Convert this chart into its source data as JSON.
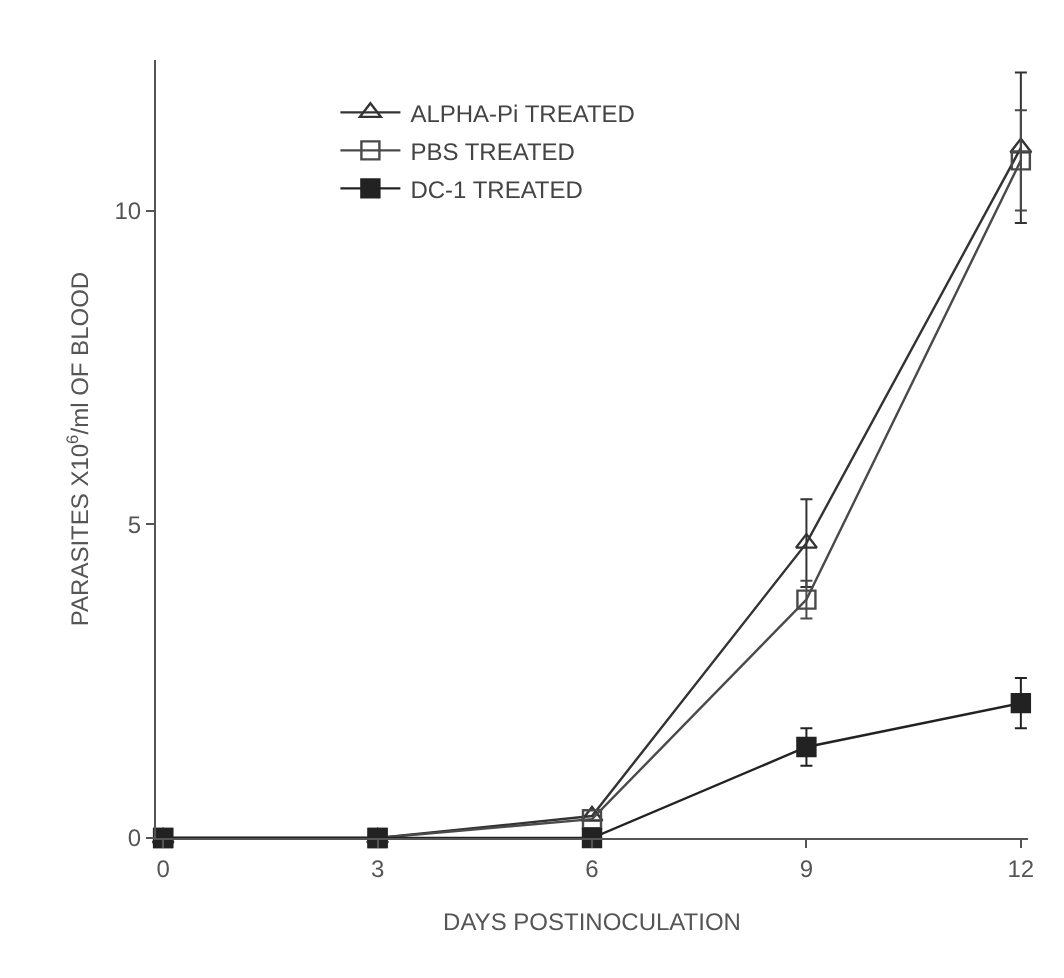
{
  "chart_data": {
    "type": "line",
    "xlabel": "DAYS POSTINOCULATION",
    "ylabel": "PARASITES X10$^{6}$/ml OF BLOOD",
    "x": [
      0,
      3,
      6,
      9,
      12
    ],
    "xlim": [
      -0.1,
      12.1
    ],
    "xticks": [
      0,
      3,
      6,
      9,
      12
    ],
    "ylim": [
      0,
      12.4
    ],
    "yticks": [
      0,
      5,
      10
    ],
    "grid": false,
    "legend": "top left",
    "line_style": "solid",
    "series": [
      {
        "name": "ALPHA-Pi TREATED",
        "color": "#333333",
        "marker": "triangle-open",
        "values": [
          0,
          0,
          0.35,
          4.7,
          11.0
        ],
        "errors": [
          null,
          null,
          null,
          0.7,
          1.2
        ]
      },
      {
        "name": "PBS TREATED",
        "color": "#4a4a4a",
        "marker": "square-open",
        "values": [
          0,
          0,
          0.3,
          3.8,
          10.8
        ],
        "errors": [
          null,
          null,
          null,
          0.3,
          0.8
        ]
      },
      {
        "name": "DC-1 TREATED",
        "color": "#222222",
        "marker": "square",
        "values": [
          0,
          0,
          0,
          1.45,
          2.15
        ],
        "errors": [
          null,
          null,
          null,
          0.3,
          0.4
        ]
      }
    ]
  }
}
